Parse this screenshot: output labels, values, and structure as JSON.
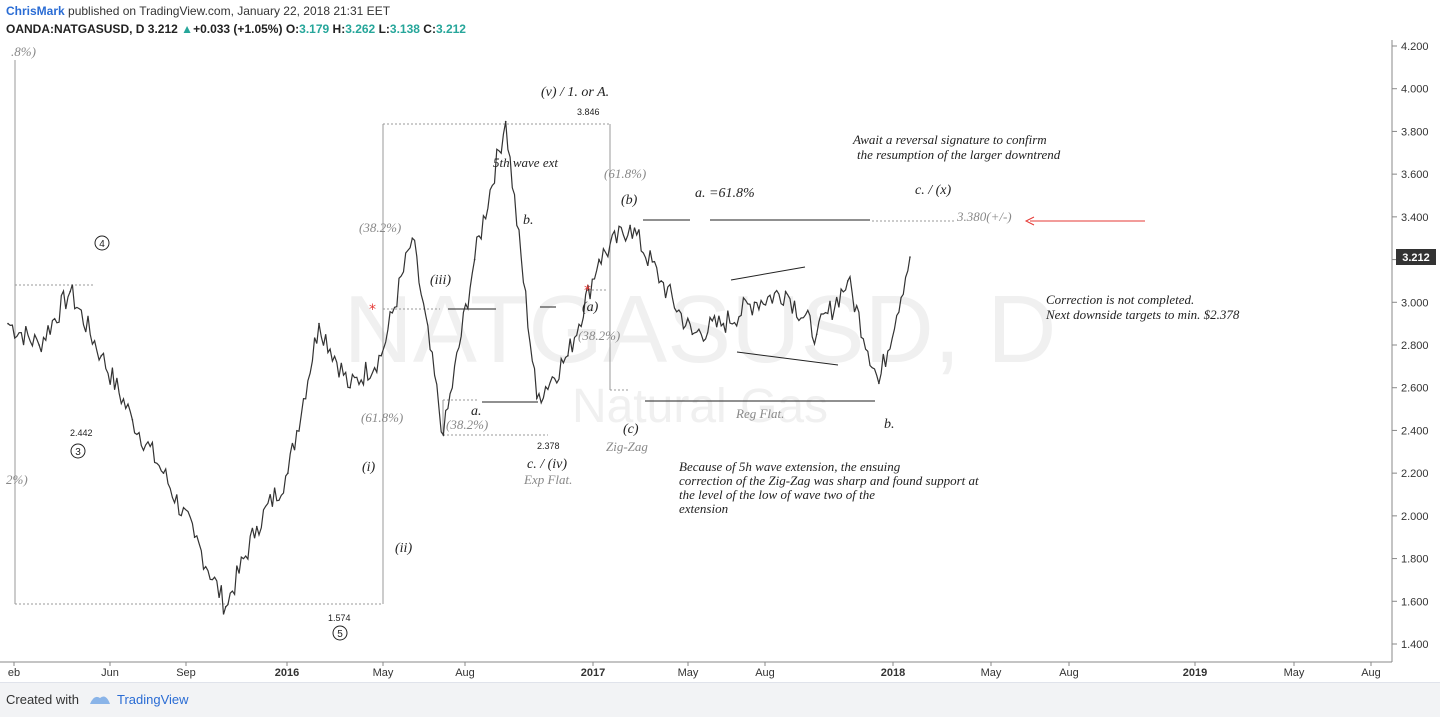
{
  "header": {
    "author": "ChrisMark",
    "published": "published on TradingView.com, January 22, 2018 21:31 EET",
    "symbol": "OANDA:NATGASUSD, D",
    "last": "3.212",
    "change": "+0.033 (+1.05%)",
    "o_label": "O:",
    "o": "3.179",
    "h_label": "H:",
    "h": "3.262",
    "l_label": "L:",
    "l": "3.138",
    "c_label": "C:",
    "c": "3.212"
  },
  "footer": {
    "created_with": "Created with",
    "brand": "TradingView"
  },
  "watermark": {
    "symbol": "NATGASUSD, D",
    "name": "Natural Gas"
  },
  "colors": {
    "price_line": "#333333",
    "arrow": "#e53935",
    "accent": "#2a6cd4",
    "up": "#26a69a",
    "fib_line": "#999999"
  },
  "chart_data": {
    "type": "line",
    "title": "",
    "x": [
      "2015-02",
      "2015-04",
      "2015-06",
      "2015-08",
      "2015-10",
      "2015-12",
      "2016-02",
      "2016-03",
      "2016-04",
      "2016-05",
      "2016-06",
      "2016-07",
      "2016-08",
      "2016-09",
      "2016-10",
      "2016-11",
      "2016-12",
      "2017-01",
      "2017-02",
      "2017-03",
      "2017-04",
      "2017-05",
      "2017-06",
      "2017-07",
      "2017-08",
      "2017-09",
      "2017-10",
      "2017-11",
      "2017-12",
      "2018-01"
    ],
    "series": [
      {
        "values": [
          2.9,
          2.8,
          3.05,
          2.75,
          2.45,
          2.2,
          1.9,
          1.574,
          1.95,
          2.2,
          2.9,
          2.6,
          2.75,
          3.3,
          2.378,
          3.2,
          3.846,
          2.55,
          2.75,
          3.2,
          3.36,
          3.1,
          2.85,
          2.9,
          3.0,
          3.05,
          2.85,
          3.1,
          2.62,
          3.212
        ]
      }
    ],
    "ylim": [
      1.4,
      4.2
    ],
    "y_ticks": [
      "1.400",
      "1.600",
      "1.800",
      "2.000",
      "2.200",
      "2.400",
      "2.600",
      "2.800",
      "3.000",
      "3.200",
      "3.400",
      "3.600",
      "3.800",
      "4.000",
      "4.200"
    ],
    "x_ticks": [
      "eb",
      "Jun",
      "Sep",
      "2016",
      "May",
      "Aug",
      "2017",
      "May",
      "Aug",
      "2018",
      "May",
      "Aug",
      "2019",
      "May",
      "Aug"
    ],
    "last_price": "3.212",
    "annotations": {
      "wave_v": "(v) / 1. or A.",
      "high": "3.846",
      "ext": "5th wave ext",
      "fib618a": "(61.8%)",
      "b_wave": "(b)",
      "a618": "a. =61.8%",
      "await": "Await a reversal signature to confirm",
      "await2": "the resumption of the larger downtrend",
      "cx": "c. / (x)",
      "target": "3.380(+/-)",
      "correction": "Correction is not completed.",
      "next": "Next downside targets to min. $2.378",
      "w4": "4",
      "w3": "3",
      "w5": "5",
      "v2442": "2.442",
      "v1574": "1.574",
      "fib382a": "(38.2%)",
      "fib618b": "(61.8%)",
      "iii": "(iii)",
      "i": "(i)",
      "ii": "(ii)",
      "b_small": "b.",
      "a_small": "a.",
      "fib382b": "(38.2%)",
      "v2378": "2.378",
      "civ": "c. / (iv)",
      "expflat": "Exp Flat.",
      "a_wave": "(a)",
      "fib382c": "(38.2%)",
      "c_wave": "(c)",
      "zigzag": "Zig-Zag",
      "regflat": "Reg Flat.",
      "b_final": "b.",
      "because1": "Because of 5h wave extension, the ensuing",
      "because2": "correction of the Zig-Zag was sharp and found support at",
      "because3": "the level of the low of wave two of the",
      "because4": "extension",
      "left_pct1": ".8%)",
      "left_pct2": "2%)"
    }
  }
}
